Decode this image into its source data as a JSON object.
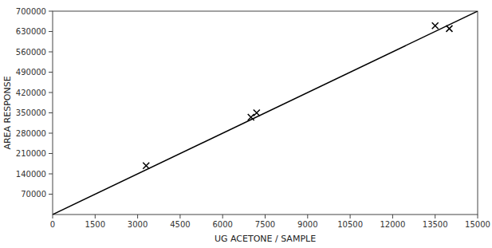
{
  "chart_data": {
    "type": "scatter",
    "xlabel": "UG ACETONE / SAMPLE",
    "ylabel": "AREA RESPONSE",
    "series": [
      {
        "type": "line",
        "color": "#000000",
        "line_style": "solid",
        "x": [
          0,
          15000
        ],
        "values": [
          0,
          700000
        ]
      },
      {
        "type": "scatter",
        "color": "#000000",
        "marker": "x",
        "x": [
          3300,
          7000,
          7200,
          13500,
          14000
        ],
        "values": [
          168000,
          335000,
          350000,
          650000,
          640000
        ]
      }
    ],
    "xlim": [
      0,
      15000
    ],
    "ylim": [
      0,
      700000
    ],
    "xticks": [
      0,
      1500,
      3000,
      4500,
      6000,
      7500,
      9000,
      10500,
      12000,
      13500,
      15000
    ],
    "yticks": [
      70000,
      140000,
      210000,
      280000,
      350000,
      420000,
      490000,
      560000,
      630000,
      700000
    ],
    "grid": false
  }
}
